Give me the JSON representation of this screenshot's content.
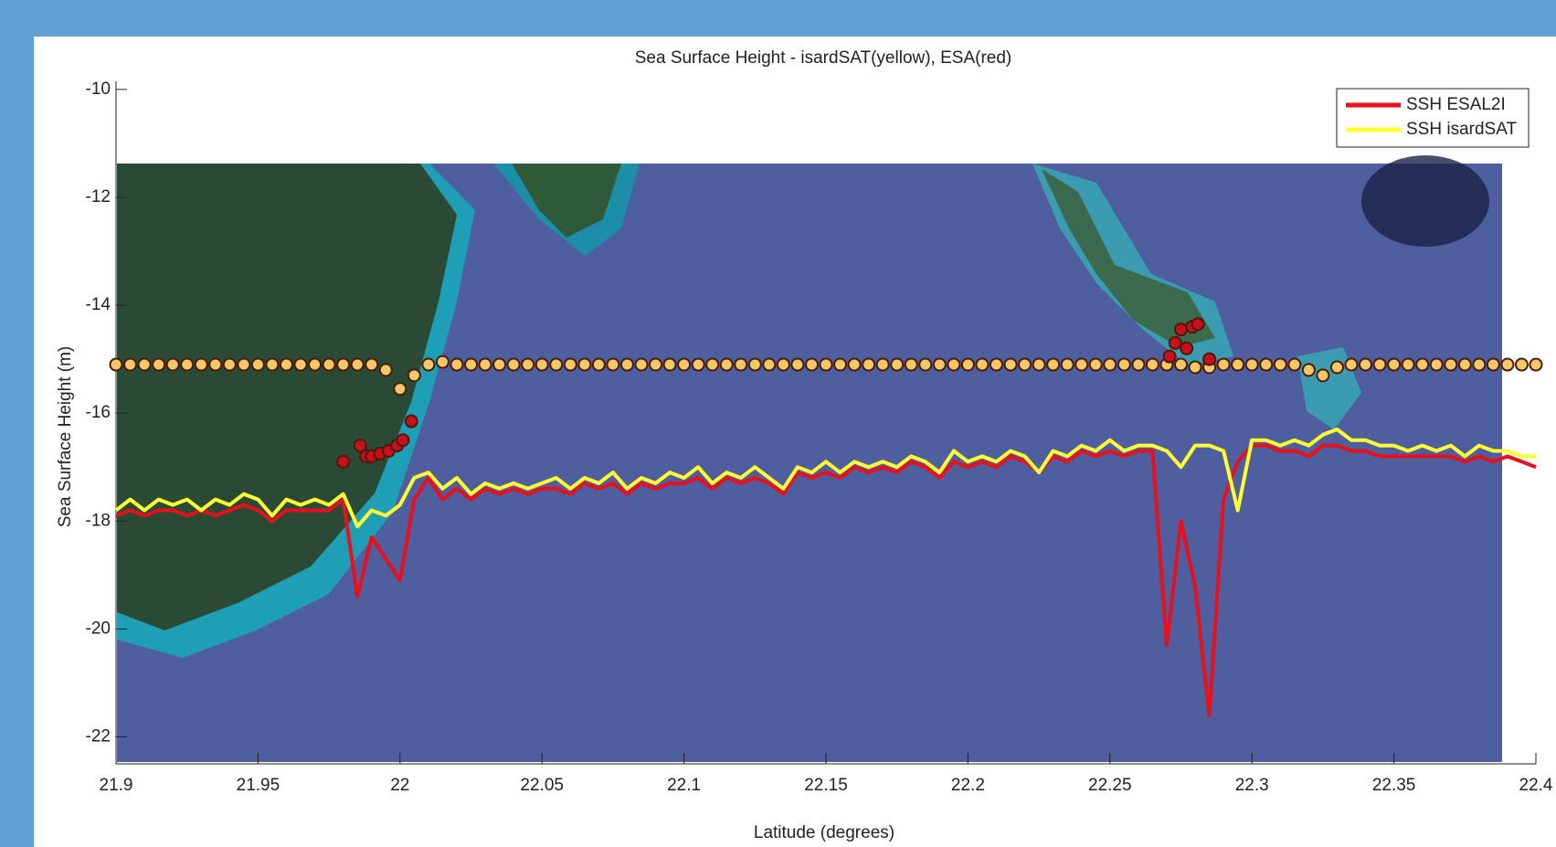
{
  "chart_data": {
    "type": "line",
    "title": "Sea Surface Height - isardSAT(yellow), ESA(red)",
    "xlabel": "Latitude (degrees)",
    "ylabel": "Sea Surface Height (m)",
    "xlim": [
      21.9,
      22.4
    ],
    "xticks": [
      21.9,
      21.95,
      22,
      22.05,
      22.1,
      22.15,
      22.2,
      22.25,
      22.3,
      22.35,
      22.4
    ],
    "ylim": [
      -22.5,
      -9.85
    ],
    "yticks": [
      -10,
      -12,
      -14,
      -16,
      -18,
      -20,
      -22
    ],
    "legend": "top-right",
    "x": [
      21.9,
      21.905,
      21.91,
      21.915,
      21.92,
      21.925,
      21.93,
      21.935,
      21.94,
      21.945,
      21.95,
      21.955,
      21.96,
      21.965,
      21.97,
      21.975,
      21.98,
      21.985,
      21.99,
      21.995,
      22.0,
      22.005,
      22.01,
      22.015,
      22.02,
      22.025,
      22.03,
      22.035,
      22.04,
      22.045,
      22.05,
      22.055,
      22.06,
      22.065,
      22.07,
      22.075,
      22.08,
      22.085,
      22.09,
      22.095,
      22.1,
      22.105,
      22.11,
      22.115,
      22.12,
      22.125,
      22.13,
      22.135,
      22.14,
      22.145,
      22.15,
      22.155,
      22.16,
      22.165,
      22.17,
      22.175,
      22.18,
      22.185,
      22.19,
      22.195,
      22.2,
      22.205,
      22.21,
      22.215,
      22.22,
      22.225,
      22.23,
      22.235,
      22.24,
      22.245,
      22.25,
      22.255,
      22.26,
      22.265,
      22.27,
      22.275,
      22.28,
      22.285,
      22.29,
      22.295,
      22.3,
      22.305,
      22.31,
      22.315,
      22.32,
      22.325,
      22.33,
      22.335,
      22.34,
      22.345,
      22.35,
      22.355,
      22.36,
      22.365,
      22.37,
      22.375,
      22.38,
      22.385,
      22.39,
      22.395,
      22.4
    ],
    "series": [
      {
        "type": "scatter",
        "color": "#f3c867",
        "values": [
          -15.1,
          -15.1,
          -15.1,
          -15.1,
          -15.1,
          -15.1,
          -15.1,
          -15.1,
          -15.1,
          -15.1,
          -15.1,
          -15.1,
          -15.1,
          -15.1,
          -15.1,
          -15.1,
          -15.1,
          -15.1,
          -15.1,
          -15.2,
          -15.55,
          -15.3,
          -15.1,
          -15.05,
          -15.1,
          -15.1,
          -15.1,
          -15.1,
          -15.1,
          -15.1,
          -15.1,
          -15.1,
          -15.1,
          -15.1,
          -15.1,
          -15.1,
          -15.1,
          -15.1,
          -15.1,
          -15.1,
          -15.1,
          -15.1,
          -15.1,
          -15.1,
          -15.1,
          -15.1,
          -15.1,
          -15.1,
          -15.1,
          -15.1,
          -15.1,
          -15.1,
          -15.1,
          -15.1,
          -15.1,
          -15.1,
          -15.1,
          -15.1,
          -15.1,
          -15.1,
          -15.1,
          -15.1,
          -15.1,
          -15.1,
          -15.1,
          -15.1,
          -15.1,
          -15.1,
          -15.1,
          -15.1,
          -15.1,
          -15.1,
          -15.1,
          -15.1,
          -15.1,
          -15.1,
          -15.15,
          -15.15,
          -15.1,
          -15.1,
          -15.1,
          -15.1,
          -15.1,
          -15.1,
          -15.2,
          -15.3,
          -15.15,
          -15.1,
          -15.1,
          -15.1,
          -15.1,
          -15.1,
          -15.1,
          -15.1,
          -15.1,
          -15.1,
          -15.1,
          -15.1,
          -15.1,
          -15.1,
          -15.1
        ]
      },
      {
        "type": "scatter",
        "color": "#c8101c",
        "x": [
          21.98,
          21.986,
          21.988,
          21.99,
          21.993,
          21.996,
          21.999,
          22.001,
          22.004,
          22.271,
          22.273,
          22.275,
          22.277,
          22.279,
          22.281,
          22.285
        ],
        "values": [
          -16.9,
          -16.6,
          -16.8,
          -16.8,
          -16.75,
          -16.7,
          -16.6,
          -16.5,
          -16.15,
          -14.95,
          -14.7,
          -14.45,
          -14.8,
          -14.4,
          -14.35,
          -15.0
        ]
      },
      {
        "type": "line",
        "name": "SSH ESAL2I",
        "color": "#e8101a",
        "values": [
          -17.9,
          -17.8,
          -17.9,
          -17.8,
          -17.8,
          -17.9,
          -17.8,
          -17.9,
          -17.8,
          -17.7,
          -17.8,
          -18.0,
          -17.8,
          -17.8,
          -17.8,
          -17.8,
          -17.6,
          -19.4,
          -18.3,
          -18.7,
          -19.1,
          -17.6,
          -17.2,
          -17.6,
          -17.4,
          -17.6,
          -17.4,
          -17.5,
          -17.4,
          -17.5,
          -17.4,
          -17.4,
          -17.5,
          -17.3,
          -17.4,
          -17.3,
          -17.5,
          -17.3,
          -17.4,
          -17.3,
          -17.3,
          -17.2,
          -17.4,
          -17.2,
          -17.3,
          -17.2,
          -17.3,
          -17.5,
          -17.1,
          -17.2,
          -17.1,
          -17.2,
          -17.0,
          -17.1,
          -17.0,
          -17.1,
          -16.9,
          -17.0,
          -17.2,
          -16.9,
          -17.0,
          -16.9,
          -17.0,
          -16.8,
          -16.9,
          -17.1,
          -16.8,
          -16.9,
          -16.7,
          -16.8,
          -16.7,
          -16.8,
          -16.7,
          -16.7,
          -20.3,
          -18.0,
          -19.2,
          -21.6,
          -17.6,
          -16.9,
          -16.6,
          -16.6,
          -16.7,
          -16.7,
          -16.8,
          -16.6,
          -16.6,
          -16.7,
          -16.7,
          -16.8,
          -16.8,
          -16.8,
          -16.8,
          -16.8,
          -16.8,
          -16.9,
          -16.8,
          -16.9,
          -16.8,
          -16.9,
          -17.0
        ]
      },
      {
        "type": "line",
        "name": "SSH isardSAT",
        "color": "#ffff33",
        "values": [
          -17.8,
          -17.6,
          -17.8,
          -17.6,
          -17.7,
          -17.6,
          -17.8,
          -17.6,
          -17.7,
          -17.5,
          -17.6,
          -17.9,
          -17.6,
          -17.7,
          -17.6,
          -17.7,
          -17.5,
          -18.1,
          -17.8,
          -17.9,
          -17.7,
          -17.2,
          -17.1,
          -17.4,
          -17.2,
          -17.5,
          -17.3,
          -17.4,
          -17.3,
          -17.4,
          -17.3,
          -17.2,
          -17.4,
          -17.2,
          -17.3,
          -17.1,
          -17.4,
          -17.2,
          -17.3,
          -17.1,
          -17.2,
          -17.0,
          -17.3,
          -17.1,
          -17.2,
          -17.0,
          -17.2,
          -17.4,
          -17.0,
          -17.1,
          -16.9,
          -17.1,
          -16.9,
          -17.0,
          -16.9,
          -17.0,
          -16.8,
          -16.9,
          -17.1,
          -16.7,
          -16.9,
          -16.8,
          -16.9,
          -16.7,
          -16.8,
          -17.1,
          -16.7,
          -16.8,
          -16.6,
          -16.7,
          -16.5,
          -16.7,
          -16.6,
          -16.6,
          -16.7,
          -17.0,
          -16.6,
          -16.6,
          -16.7,
          -17.8,
          -16.5,
          -16.5,
          -16.6,
          -16.5,
          -16.6,
          -16.4,
          -16.3,
          -16.5,
          -16.5,
          -16.6,
          -16.6,
          -16.7,
          -16.6,
          -16.7,
          -16.6,
          -16.8,
          -16.6,
          -16.7,
          -16.7,
          -16.8,
          -16.8
        ]
      }
    ]
  }
}
